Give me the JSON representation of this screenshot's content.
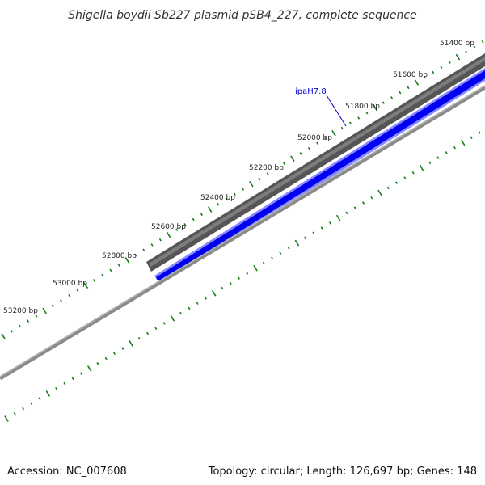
{
  "title": "Shigella boydii Sb227 plasmid pSB4_227, complete sequence",
  "footer": {
    "accession": "Accession: NC_007608",
    "summary": "Topology: circular; Length: 126,697 bp; Genes: 148"
  },
  "ruler": {
    "labels": [
      "51400 bp",
      "51600 bp",
      "51800 bp",
      "52000 bp",
      "52200 bp",
      "52400 bp",
      "52600 bp",
      "52800 bp",
      "53000 bp",
      "53200 bp"
    ]
  },
  "gene": {
    "label": "ipaH7.8"
  },
  "colors": {
    "tick": "#1a7a1a",
    "gene_forward": "#0000ee",
    "gene_forward_outline": "#8888ff",
    "backbone_dark": "#555555",
    "backbone_light": "#9a9a9a"
  }
}
